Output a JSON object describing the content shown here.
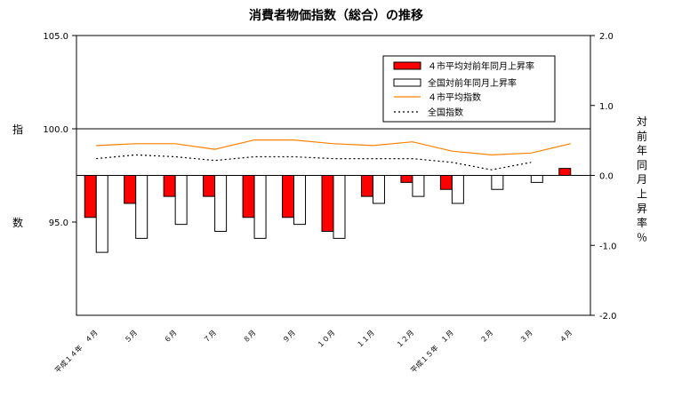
{
  "chart_data": {
    "type": "bar",
    "title": "消費者物価指数（総合）の推移",
    "ylabel_left": "指数",
    "ylabel_right": "対前年同月上昇率％",
    "categories": [
      "平成１４年　４月",
      "５月",
      "６月",
      "７月",
      "８月",
      "９月",
      "１０月",
      "１１月",
      "１２月",
      "平成１５年　１月",
      "２月",
      "３月",
      "４月"
    ],
    "left_axis": {
      "ylim": [
        90,
        105
      ],
      "ticks": [
        "105.0",
        "100.0",
        "95.0"
      ],
      "tick_values": [
        105,
        100,
        95
      ]
    },
    "right_axis": {
      "ylim": [
        -2.0,
        2.0
      ],
      "ticks": [
        "2.0",
        "1.0",
        "0.0",
        "-1.0",
        "-2.0"
      ],
      "tick_values": [
        2,
        1,
        0,
        -1,
        -2
      ]
    },
    "bar_series": [
      {
        "name": "４市平均対前年同月上昇率",
        "axis": "right",
        "color": "#ff0000",
        "values": [
          -0.6,
          -0.4,
          -0.3,
          -0.3,
          -0.6,
          -0.6,
          -0.8,
          -0.3,
          -0.1,
          -0.2,
          null,
          null,
          0.1
        ]
      },
      {
        "name": "全国対前年同月上昇率",
        "axis": "right",
        "color": "#ffffff",
        "values": [
          -1.1,
          -0.9,
          -0.7,
          -0.8,
          -0.9,
          -0.7,
          -0.9,
          -0.4,
          -0.3,
          -0.4,
          -0.2,
          -0.1,
          null
        ]
      }
    ],
    "line_series": [
      {
        "name": "４市平均指数",
        "axis": "left",
        "color": "#ff8000",
        "dash": false,
        "values": [
          99.1,
          99.2,
          99.2,
          98.9,
          99.4,
          99.4,
          99.2,
          99.1,
          99.3,
          98.8,
          98.6,
          98.7,
          99.2
        ]
      },
      {
        "name": "全国指数",
        "axis": "left",
        "color": "#000000",
        "dash": true,
        "values": [
          98.4,
          98.6,
          98.5,
          98.3,
          98.5,
          98.5,
          98.4,
          98.4,
          98.4,
          98.2,
          97.8,
          98.2,
          null
        ]
      }
    ],
    "grid": false,
    "legend_position": "top-right"
  }
}
